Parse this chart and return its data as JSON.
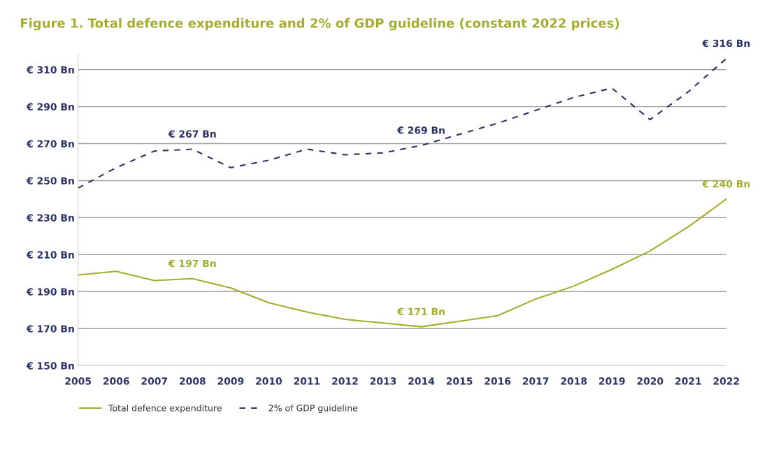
{
  "chart_data": {
    "type": "line",
    "title": "Figure 1. Total defence expenditure and 2% of GDP guideline (constant 2022 prices)",
    "x": [
      2005,
      2006,
      2007,
      2008,
      2009,
      2010,
      2011,
      2012,
      2013,
      2014,
      2015,
      2016,
      2017,
      2018,
      2019,
      2020,
      2021,
      2022
    ],
    "series": [
      {
        "name": "Total defence expenditure",
        "color": "#a3ad2b",
        "line_style": "solid",
        "values": [
          199,
          201,
          196,
          197,
          192,
          184,
          179,
          175,
          173,
          171,
          174,
          177,
          186,
          193,
          202,
          212,
          225,
          240
        ]
      },
      {
        "name": "2% of GDP guideline",
        "color": "#2b3467",
        "line_style": "dashed",
        "values": [
          246,
          257,
          266,
          267,
          257,
          261,
          267,
          264,
          265,
          269,
          275,
          281,
          288,
          295,
          300,
          283,
          298,
          316
        ]
      }
    ],
    "annotations": [
      {
        "text": "€ 197 Bn",
        "x": 2008,
        "y": 197
      },
      {
        "text": "€ 171 Bn",
        "x": 2014,
        "y": 171
      },
      {
        "text": "€ 240 Bn",
        "x": 2022,
        "y": 240
      },
      {
        "text": "€ 267 Bn",
        "x": 2008,
        "y": 267
      },
      {
        "text": "€ 269 Bn",
        "x": 2014,
        "y": 269
      },
      {
        "text": "€ 316 Bn",
        "x": 2022,
        "y": 316
      }
    ],
    "xlim": [
      2005,
      2022
    ],
    "xticks": [
      2005,
      2006,
      2007,
      2008,
      2009,
      2010,
      2011,
      2012,
      2013,
      2014,
      2015,
      2016,
      2017,
      2018,
      2019,
      2020,
      2021,
      2022
    ],
    "ylim": [
      150,
      318
    ],
    "yticks": [
      {
        "value": 150,
        "label": "€ 150 Bn"
      },
      {
        "value": 170,
        "label": "€ 170 Bn"
      },
      {
        "value": 190,
        "label": "€ 190 Bn"
      },
      {
        "value": 210,
        "label": "€ 210 Bn"
      },
      {
        "value": 230,
        "label": "€ 230 Bn"
      },
      {
        "value": 250,
        "label": "€ 250 Bn"
      },
      {
        "value": 270,
        "label": "€ 270 Bn"
      },
      {
        "value": 290,
        "label": "€ 290 Bn"
      },
      {
        "value": 310,
        "label": "€ 310 Bn"
      }
    ],
    "grid": "y",
    "legend": "bottom left",
    "marker": "none"
  }
}
